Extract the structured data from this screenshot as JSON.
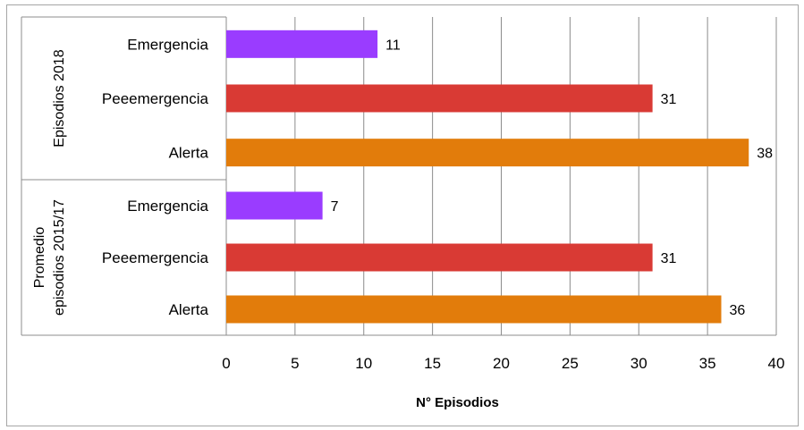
{
  "chart_data": {
    "type": "bar",
    "orientation": "horizontal",
    "groups": [
      {
        "label": "Episodios 2018",
        "bars": [
          {
            "category": "Emergencia",
            "value": 11,
            "color": "#9a3cff"
          },
          {
            "category": "Peeemergencia",
            "value": 31,
            "color": "#d93a34"
          },
          {
            "category": "Alerta",
            "value": 38,
            "color": "#e27c0b"
          }
        ]
      },
      {
        "label_lines": [
          "Promedio",
          "episodios 2015/17"
        ],
        "bars": [
          {
            "category": "Emergencia",
            "value": 7,
            "color": "#9a3cff"
          },
          {
            "category": "Peeemergencia",
            "value": 31,
            "color": "#d93a34"
          },
          {
            "category": "Alerta",
            "value": 36,
            "color": "#e27c0b"
          }
        ]
      }
    ],
    "x_ticks": [
      0,
      5,
      10,
      15,
      20,
      25,
      30,
      35,
      40
    ],
    "xlim": [
      0,
      40
    ],
    "xlabel": "N° Episodios",
    "ylabel": "",
    "title": "",
    "grid": "vertical",
    "legend": "none"
  }
}
